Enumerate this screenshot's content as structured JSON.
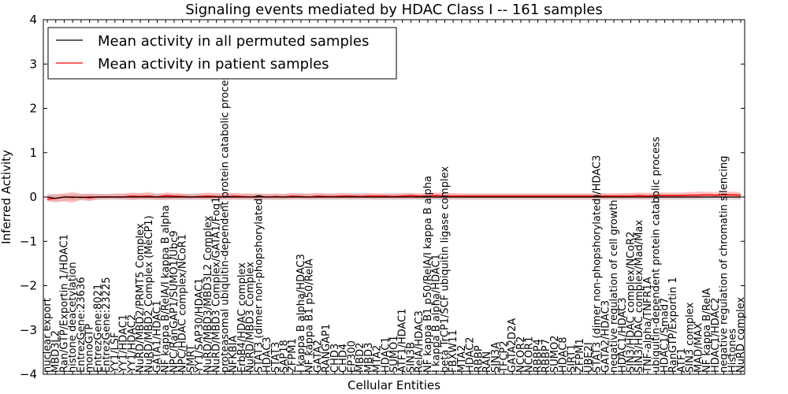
{
  "chart_data": {
    "type": "line",
    "title": "Signaling events mediated by HDAC Class I -- 161 samples",
    "xlabel": "Cellular Entities",
    "ylabel": "Inferred Activity",
    "ylim": [
      -4,
      4
    ],
    "yticks": [
      "−4",
      "−3",
      "−2",
      "−1",
      "0",
      "1",
      "2",
      "3",
      "4"
    ],
    "yticks_values": [
      -4,
      -3,
      -2,
      -1,
      0,
      1,
      2,
      3,
      4
    ],
    "legend": {
      "position": "top-left",
      "entries": [
        {
          "label": "Mean activity in all permuted samples",
          "color": "#000000"
        },
        {
          "label": "Mean activity in patient samples",
          "color": "#ff0000"
        }
      ]
    },
    "categories": [
      "nuclear export",
      "MBD3L2",
      "Ran/GTP/Exportin 1/HDAC1",
      "histone deacetylation",
      "EntrezGene:23636",
      "monoGTP",
      "EntrezGene:8021",
      "EntrezGene:23225",
      "YY1/LSF",
      "YY1/HDAC1",
      "YY1/HDAC2",
      "NuRD/MBD2/PRMT5 Complex",
      "NuRD/MBD2 Complex (MeCP1)",
      "GATA1/HDAC1",
      "NF kappa B/RelA/I kappa B alpha",
      "NPC/RanGAP1/SUMO1/Ubc9",
      "NPC/HDAC complex/NCoR1",
      "SMRT",
      "YY1/SAP30/HDAC1",
      "NuRD/MBD3/MBD3L2 Complex",
      "NuRD/MBD3 Complex/GATA1/Fog1",
      "proteasomal ubiquitin-dependent protein catabolic process",
      "NFKBIA",
      "ErbB4/HDAC complex",
      "NuRD/MBD3 Complex",
      "STAT3 (dimer non-phopshorylated)",
      "HDAC3",
      "STAT3",
      "SAP18",
      "ZFPM1",
      "I kappa B alpha/HDAC3",
      "NF kappa B1 p50/RelA",
      "GATA2",
      "RANGAP1",
      "CHD3",
      "CHD4",
      "EP300",
      "MBD2",
      "MBD3",
      "MTA2",
      "HDAC1",
      "SUMO1",
      "ATF1/HDAC1",
      "SIN3B",
      "RelA/HDAC3",
      "NF kappa B1 p50/RelA/I kappa B alpha",
      "I kappa B alpha/HDAC1",
      "beta TrCP1/SCF ubiquitin ligase complex",
      "FBXW11",
      "MTA2",
      "HDAC2",
      "RBBP",
      "RAN",
      "SIN3A",
      "TFCP2",
      "GATA2D2A",
      "NCOR2",
      "NCOR1",
      "RBBP4",
      "RBBP7",
      "SUMO2",
      "HDAC8",
      "SIRT1",
      "ZFPM1",
      "UBE2I",
      "STAT3 (dimer non-phopshorylated)/HDAC3",
      "GATA2/HDAC3",
      "negative regulation of cell growth",
      "HDAC1/HDAC3",
      "SIN3/HDAC complex/NCoR2",
      "SIN3/HDAC complex/Mad/Max",
      "TNF-alpha/TNFR1A",
      "ubiquitin-dependent protein catabolic process",
      "HDAC1/Smad7",
      "RanGTP/Exportin 1",
      "ATF1",
      "SIN3 complex",
      "MAD/MAX",
      "NF kappa B/RelA",
      "HDAC1/HDAC2",
      "negative regulation of chromatin silencing",
      "Histones",
      "NuRD complex"
    ],
    "series": [
      {
        "name": "Mean activity in all permuted samples",
        "color": "#000000",
        "values": [
          0.0,
          -0.03,
          0.0,
          0.0,
          -0.01,
          0.0,
          0.0,
          0.0,
          0.0,
          0.0,
          0.0,
          0.0,
          0.0,
          0.0,
          0.0,
          0.0,
          0.0,
          0.0,
          0.0,
          0.0,
          0.0,
          0.0,
          0.0,
          0.0,
          0.0,
          0.0,
          0.0,
          0.0,
          0.0,
          0.0,
          0.0,
          0.0,
          0.0,
          0.0,
          0.0,
          0.0,
          0.0,
          0.0,
          0.0,
          0.0,
          0.0,
          0.0,
          0.0,
          0.0,
          0.0,
          0.0,
          0.0,
          0.0,
          0.0,
          0.0,
          0.0,
          0.0,
          0.0,
          0.0,
          0.0,
          0.0,
          0.0,
          0.0,
          0.0,
          0.0,
          0.0,
          0.0,
          0.0,
          0.0,
          0.0,
          0.0,
          0.0,
          0.0,
          0.0,
          0.0,
          0.0,
          0.0,
          0.0,
          0.0,
          0.0,
          0.0,
          0.0,
          0.0,
          0.0,
          0.0,
          0.0,
          0.0,
          0.0
        ]
      },
      {
        "name": "Mean activity in patient samples",
        "color": "#ff0000",
        "values": [
          -0.05,
          -0.03,
          0.0,
          -0.01,
          0.0,
          -0.02,
          0.0,
          0.0,
          0.0,
          0.0,
          0.02,
          0.01,
          0.02,
          0.0,
          0.03,
          0.02,
          0.01,
          0.0,
          0.01,
          0.02,
          0.01,
          0.0,
          0.02,
          0.01,
          0.0,
          0.01,
          0.0,
          0.01,
          0.0,
          0.02,
          0.01,
          0.0,
          0.02,
          0.01,
          0.01,
          0.02,
          0.02,
          0.01,
          0.02,
          0.02,
          0.02,
          0.01,
          0.02,
          0.03,
          0.02,
          0.02,
          0.03,
          0.02,
          0.02,
          0.02,
          0.02,
          0.02,
          0.02,
          0.02,
          0.02,
          0.02,
          0.02,
          0.02,
          0.02,
          0.02,
          0.02,
          0.02,
          0.02,
          0.02,
          0.02,
          0.02,
          0.02,
          0.02,
          0.02,
          0.02,
          0.03,
          0.02,
          0.03,
          0.03,
          0.03,
          0.03,
          0.04,
          0.04,
          0.05,
          0.04,
          0.05,
          0.05,
          0.04
        ]
      }
    ],
    "band_permuted": {
      "low": [
        -0.08,
        -0.1,
        -0.08,
        -0.08,
        -0.08,
        -0.08,
        -0.07,
        -0.07,
        -0.07,
        -0.07,
        -0.07,
        -0.07,
        -0.07,
        -0.07,
        -0.07,
        -0.07,
        -0.07,
        -0.07,
        -0.07,
        -0.07,
        -0.07,
        -0.07,
        -0.07,
        -0.07,
        -0.07,
        -0.07,
        -0.07,
        -0.07,
        -0.07,
        -0.07,
        -0.07,
        -0.07,
        -0.07,
        -0.07,
        -0.07,
        -0.07,
        -0.07,
        -0.07,
        -0.07,
        -0.07,
        -0.07,
        -0.07,
        -0.07,
        -0.07,
        -0.07,
        -0.07,
        -0.07,
        -0.07,
        -0.07,
        -0.07,
        -0.07,
        -0.07,
        -0.07,
        -0.07,
        -0.07,
        -0.07,
        -0.07,
        -0.07,
        -0.07,
        -0.07,
        -0.07,
        -0.07,
        -0.07,
        -0.07,
        -0.07,
        -0.07,
        -0.07,
        -0.07,
        -0.07,
        -0.07,
        -0.07,
        -0.07,
        -0.07,
        -0.07,
        -0.07,
        -0.07,
        -0.07,
        -0.07,
        -0.07,
        -0.07,
        -0.07,
        -0.07,
        -0.07
      ],
      "high": [
        0.08,
        0.06,
        0.07,
        0.07,
        0.07,
        0.07,
        0.07,
        0.07,
        0.07,
        0.07,
        0.07,
        0.07,
        0.07,
        0.07,
        0.07,
        0.07,
        0.07,
        0.07,
        0.07,
        0.07,
        0.07,
        0.07,
        0.07,
        0.07,
        0.07,
        0.07,
        0.07,
        0.07,
        0.07,
        0.07,
        0.07,
        0.07,
        0.07,
        0.07,
        0.07,
        0.07,
        0.07,
        0.07,
        0.07,
        0.07,
        0.07,
        0.07,
        0.07,
        0.07,
        0.07,
        0.07,
        0.07,
        0.07,
        0.07,
        0.07,
        0.07,
        0.07,
        0.07,
        0.07,
        0.07,
        0.07,
        0.07,
        0.07,
        0.07,
        0.07,
        0.07,
        0.07,
        0.07,
        0.07,
        0.07,
        0.07,
        0.07,
        0.07,
        0.07,
        0.07,
        0.07,
        0.07,
        0.07,
        0.07,
        0.07,
        0.07,
        0.07,
        0.07,
        0.07,
        0.07,
        0.07,
        0.07,
        0.07
      ]
    },
    "band_patient": {
      "low": [
        -0.1,
        -0.12,
        -0.1,
        -0.13,
        -0.06,
        -0.09,
        -0.05,
        -0.04,
        -0.04,
        -0.05,
        -0.06,
        -0.05,
        -0.05,
        -0.06,
        -0.06,
        -0.05,
        -0.05,
        -0.05,
        -0.05,
        -0.05,
        -0.05,
        -0.05,
        -0.05,
        -0.05,
        -0.05,
        -0.05,
        -0.05,
        -0.05,
        -0.05,
        -0.04,
        -0.04,
        -0.05,
        -0.04,
        -0.04,
        -0.04,
        -0.04,
        -0.04,
        -0.04,
        -0.04,
        -0.04,
        -0.04,
        -0.04,
        -0.04,
        -0.04,
        -0.04,
        -0.04,
        -0.04,
        -0.04,
        -0.04,
        -0.04,
        -0.04,
        -0.04,
        -0.04,
        -0.04,
        -0.04,
        -0.04,
        -0.04,
        -0.04,
        -0.04,
        -0.04,
        -0.04,
        -0.04,
        -0.04,
        -0.04,
        -0.04,
        -0.04,
        -0.04,
        -0.04,
        -0.04,
        -0.04,
        -0.04,
        -0.04,
        -0.03,
        -0.03,
        -0.03,
        -0.03,
        -0.03,
        -0.03,
        -0.02,
        -0.02,
        -0.02,
        -0.02,
        -0.03
      ],
      "high": [
        0.05,
        0.06,
        0.08,
        0.11,
        0.07,
        0.08,
        0.07,
        0.06,
        0.08,
        0.08,
        0.1,
        0.09,
        0.11,
        0.07,
        0.1,
        0.09,
        0.08,
        0.07,
        0.08,
        0.1,
        0.09,
        0.08,
        0.09,
        0.08,
        0.08,
        0.08,
        0.07,
        0.08,
        0.07,
        0.09,
        0.08,
        0.08,
        0.09,
        0.08,
        0.08,
        0.09,
        0.08,
        0.08,
        0.09,
        0.08,
        0.08,
        0.08,
        0.09,
        0.09,
        0.08,
        0.09,
        0.1,
        0.09,
        0.09,
        0.08,
        0.08,
        0.08,
        0.08,
        0.08,
        0.08,
        0.08,
        0.08,
        0.08,
        0.08,
        0.08,
        0.08,
        0.08,
        0.08,
        0.08,
        0.08,
        0.08,
        0.08,
        0.08,
        0.09,
        0.09,
        0.1,
        0.09,
        0.1,
        0.1,
        0.1,
        0.1,
        0.11,
        0.12,
        0.12,
        0.11,
        0.12,
        0.12,
        0.11
      ]
    }
  }
}
